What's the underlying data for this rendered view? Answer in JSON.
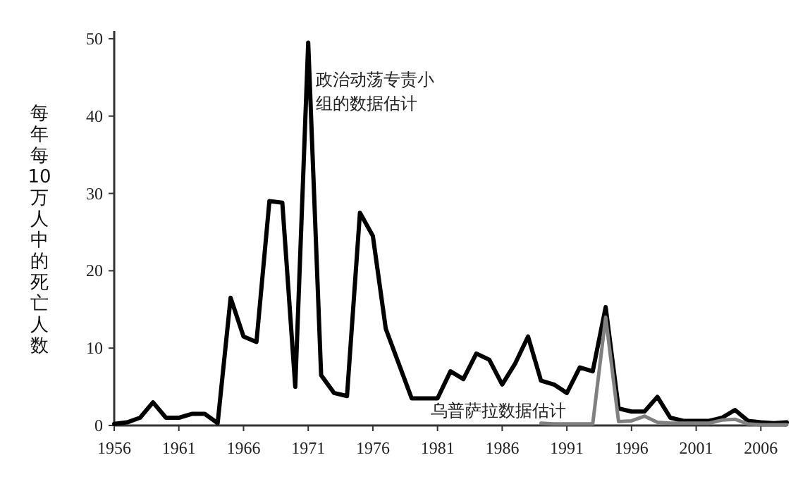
{
  "chart_data": {
    "type": "line",
    "ylabel": "每年每10万人中的死亡人数",
    "xlim": [
      1956,
      2008
    ],
    "ylim": [
      0,
      51
    ],
    "xticks": [
      1956,
      1961,
      1966,
      1971,
      1976,
      1981,
      1986,
      1991,
      1996,
      2001,
      2006
    ],
    "yticks": [
      0,
      10,
      20,
      30,
      40,
      50
    ],
    "grid": false,
    "marker": "none",
    "line_style": "solid",
    "series": [
      {
        "name": "政治动荡专责小组的数据估计",
        "color": "#000000",
        "x": [
          1956,
          1957,
          1958,
          1959,
          1960,
          1961,
          1962,
          1963,
          1964,
          1965,
          1966,
          1967,
          1968,
          1969,
          1970,
          1971,
          1972,
          1973,
          1974,
          1975,
          1976,
          1977,
          1978,
          1979,
          1980,
          1981,
          1982,
          1983,
          1984,
          1985,
          1986,
          1987,
          1988,
          1989,
          1990,
          1991,
          1992,
          1993,
          1994,
          1995,
          1996,
          1997,
          1998,
          1999,
          2000,
          2001,
          2002,
          2003,
          2004,
          2005,
          2006,
          2007,
          2008
        ],
        "values": [
          0.2,
          0.4,
          1,
          3,
          1,
          1,
          1.5,
          1.5,
          0.3,
          16.5,
          11.5,
          10.8,
          29,
          28.8,
          5,
          49.5,
          6.5,
          4.2,
          3.8,
          27.5,
          24.5,
          12.5,
          8,
          3.5,
          3.5,
          3.5,
          7,
          6,
          9.3,
          8.5,
          5.3,
          8,
          11.5,
          5.8,
          5.3,
          4.2,
          7.5,
          7,
          15.3,
          2.2,
          1.8,
          1.8,
          3.7,
          1,
          0.6,
          0.6,
          0.6,
          1,
          2,
          0.6,
          0.4,
          0.3,
          0.4
        ]
      },
      {
        "name": "乌普萨拉数据估计",
        "color": "#808080",
        "x": [
          1989,
          1990,
          1991,
          1992,
          1993,
          1994,
          1995,
          1996,
          1997,
          1998,
          1999,
          2000,
          2001,
          2002,
          2003,
          2004,
          2005,
          2006,
          2007,
          2008
        ],
        "values": [
          0.3,
          0.2,
          0.2,
          0.2,
          0.2,
          14,
          0.5,
          0.6,
          1.2,
          0.4,
          0.3,
          0.3,
          0.3,
          0.3,
          0.7,
          0.8,
          0.2,
          0.1,
          0.1,
          0.1
        ]
      }
    ]
  }
}
